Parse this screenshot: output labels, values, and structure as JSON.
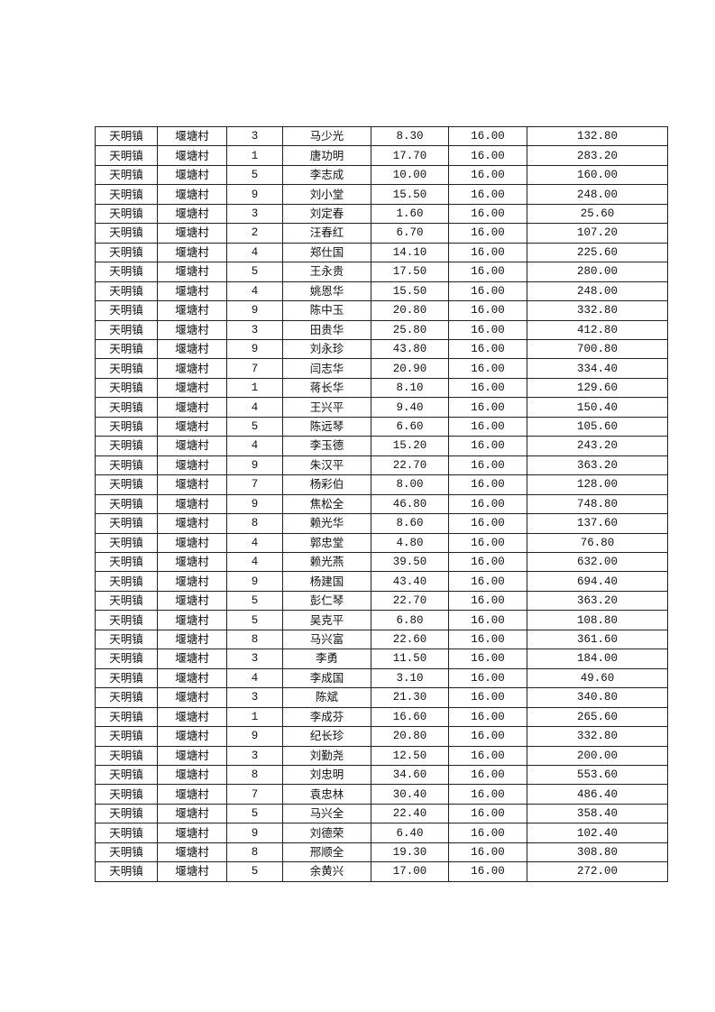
{
  "table": {
    "rows": [
      [
        "天明镇",
        "堰塘村",
        "3",
        "马少光",
        "8.30",
        "16.00",
        "132.80"
      ],
      [
        "天明镇",
        "堰塘村",
        "1",
        "唐功明",
        "17.70",
        "16.00",
        "283.20"
      ],
      [
        "天明镇",
        "堰塘村",
        "5",
        "李志成",
        "10.00",
        "16.00",
        "160.00"
      ],
      [
        "天明镇",
        "堰塘村",
        "9",
        "刘小堂",
        "15.50",
        "16.00",
        "248.00"
      ],
      [
        "天明镇",
        "堰塘村",
        "3",
        "刘定春",
        "1.60",
        "16.00",
        "25.60"
      ],
      [
        "天明镇",
        "堰塘村",
        "2",
        "汪春红",
        "6.70",
        "16.00",
        "107.20"
      ],
      [
        "天明镇",
        "堰塘村",
        "4",
        "郑仕国",
        "14.10",
        "16.00",
        "225.60"
      ],
      [
        "天明镇",
        "堰塘村",
        "5",
        "王永贵",
        "17.50",
        "16.00",
        "280.00"
      ],
      [
        "天明镇",
        "堰塘村",
        "4",
        "姚恩华",
        "15.50",
        "16.00",
        "248.00"
      ],
      [
        "天明镇",
        "堰塘村",
        "9",
        "陈中玉",
        "20.80",
        "16.00",
        "332.80"
      ],
      [
        "天明镇",
        "堰塘村",
        "3",
        "田贵华",
        "25.80",
        "16.00",
        "412.80"
      ],
      [
        "天明镇",
        "堰塘村",
        "9",
        "刘永珍",
        "43.80",
        "16.00",
        "700.80"
      ],
      [
        "天明镇",
        "堰塘村",
        "7",
        "闫志华",
        "20.90",
        "16.00",
        "334.40"
      ],
      [
        "天明镇",
        "堰塘村",
        "1",
        "蒋长华",
        "8.10",
        "16.00",
        "129.60"
      ],
      [
        "天明镇",
        "堰塘村",
        "4",
        "王兴平",
        "9.40",
        "16.00",
        "150.40"
      ],
      [
        "天明镇",
        "堰塘村",
        "5",
        "陈远琴",
        "6.60",
        "16.00",
        "105.60"
      ],
      [
        "天明镇",
        "堰塘村",
        "4",
        "李玉德",
        "15.20",
        "16.00",
        "243.20"
      ],
      [
        "天明镇",
        "堰塘村",
        "9",
        "朱汉平",
        "22.70",
        "16.00",
        "363.20"
      ],
      [
        "天明镇",
        "堰塘村",
        "7",
        "杨彩伯",
        "8.00",
        "16.00",
        "128.00"
      ],
      [
        "天明镇",
        "堰塘村",
        "9",
        "焦松全",
        "46.80",
        "16.00",
        "748.80"
      ],
      [
        "天明镇",
        "堰塘村",
        "8",
        "赖光华",
        "8.60",
        "16.00",
        "137.60"
      ],
      [
        "天明镇",
        "堰塘村",
        "4",
        "郭忠堂",
        "4.80",
        "16.00",
        "76.80"
      ],
      [
        "天明镇",
        "堰塘村",
        "4",
        "赖光燕",
        "39.50",
        "16.00",
        "632.00"
      ],
      [
        "天明镇",
        "堰塘村",
        "9",
        "杨建国",
        "43.40",
        "16.00",
        "694.40"
      ],
      [
        "天明镇",
        "堰塘村",
        "5",
        "彭仁琴",
        "22.70",
        "16.00",
        "363.20"
      ],
      [
        "天明镇",
        "堰塘村",
        "5",
        "吴克平",
        "6.80",
        "16.00",
        "108.80"
      ],
      [
        "天明镇",
        "堰塘村",
        "8",
        "马兴富",
        "22.60",
        "16.00",
        "361.60"
      ],
      [
        "天明镇",
        "堰塘村",
        "3",
        "李勇",
        "11.50",
        "16.00",
        "184.00"
      ],
      [
        "天明镇",
        "堰塘村",
        "4",
        "李成国",
        "3.10",
        "16.00",
        "49.60"
      ],
      [
        "天明镇",
        "堰塘村",
        "3",
        "陈斌",
        "21.30",
        "16.00",
        "340.80"
      ],
      [
        "天明镇",
        "堰塘村",
        "1",
        "李成芬",
        "16.60",
        "16.00",
        "265.60"
      ],
      [
        "天明镇",
        "堰塘村",
        "9",
        "纪长珍",
        "20.80",
        "16.00",
        "332.80"
      ],
      [
        "天明镇",
        "堰塘村",
        "3",
        "刘勤尧",
        "12.50",
        "16.00",
        "200.00"
      ],
      [
        "天明镇",
        "堰塘村",
        "8",
        "刘忠明",
        "34.60",
        "16.00",
        "553.60"
      ],
      [
        "天明镇",
        "堰塘村",
        "7",
        "袁忠林",
        "30.40",
        "16.00",
        "486.40"
      ],
      [
        "天明镇",
        "堰塘村",
        "5",
        "马兴全",
        "22.40",
        "16.00",
        "358.40"
      ],
      [
        "天明镇",
        "堰塘村",
        "9",
        "刘德荣",
        "6.40",
        "16.00",
        "102.40"
      ],
      [
        "天明镇",
        "堰塘村",
        "8",
        "邢顺全",
        "19.30",
        "16.00",
        "308.80"
      ],
      [
        "天明镇",
        "堰塘村",
        "5",
        "余黄兴",
        "17.00",
        "16.00",
        "272.00"
      ]
    ]
  }
}
